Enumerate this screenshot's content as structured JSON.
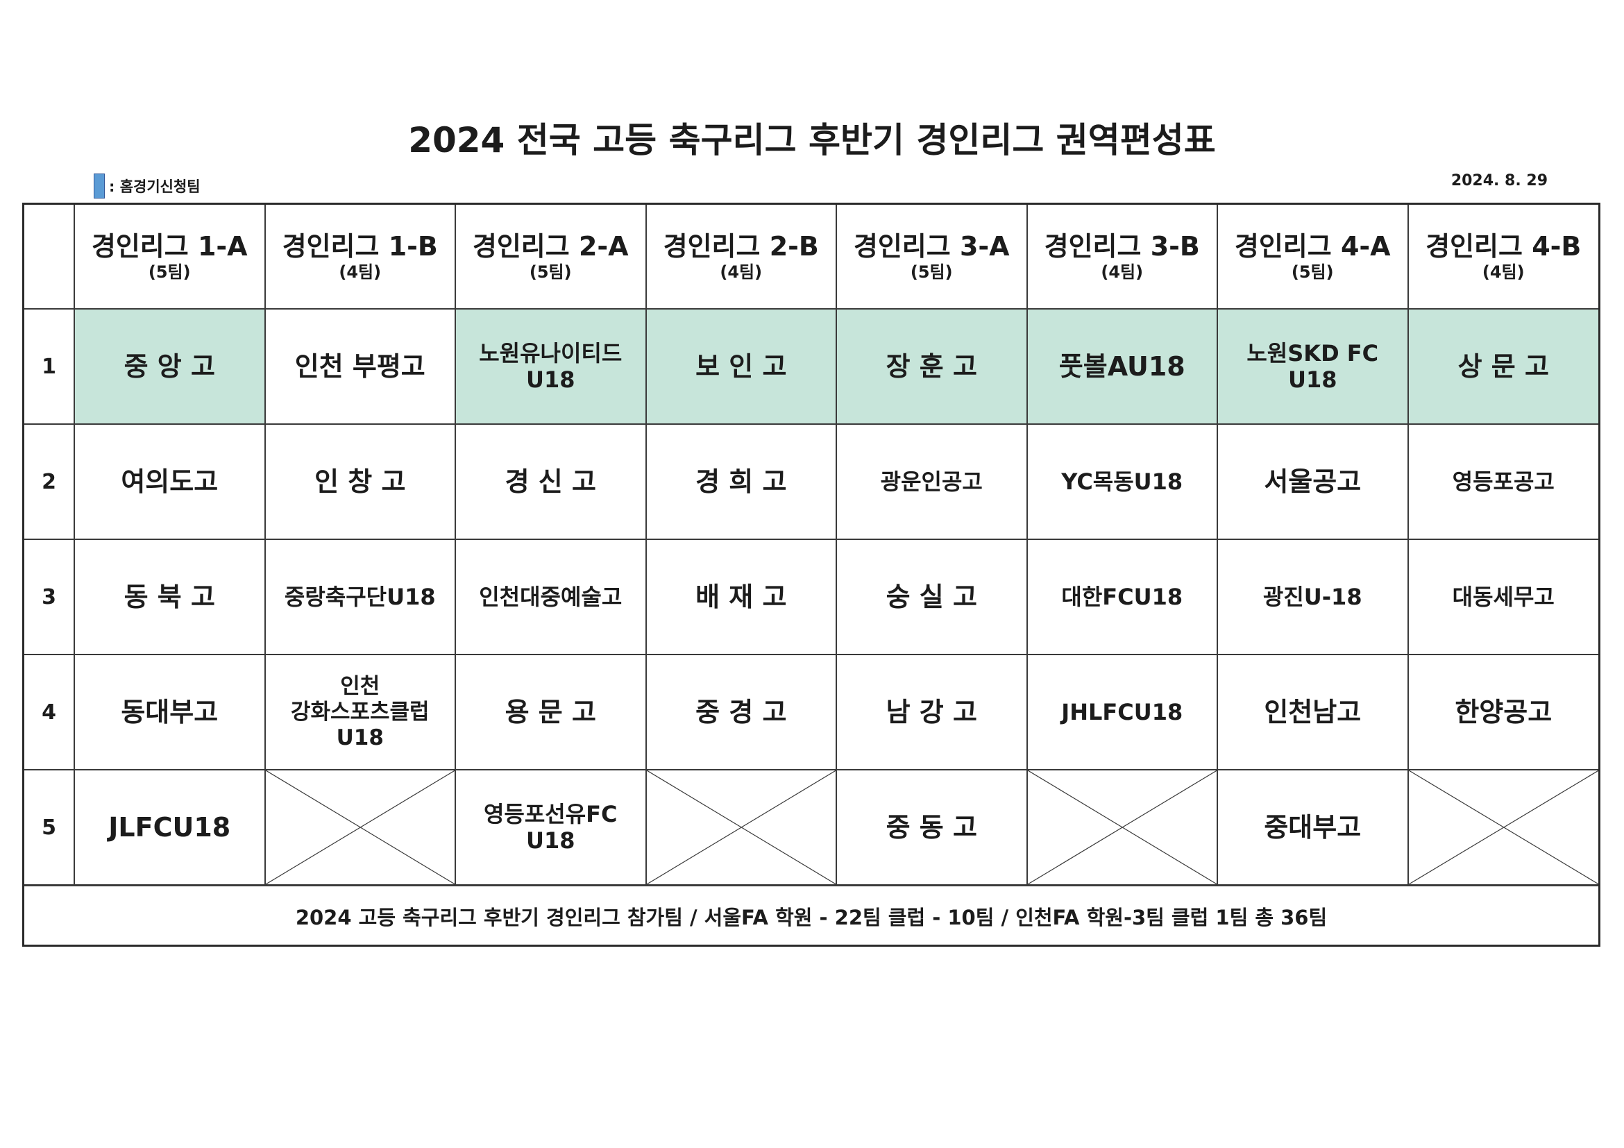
{
  "title": "2024 전국 고등 축구리그 후반기 경인리그 권역편성표",
  "legend": {
    "label": ": 홈경기신청팀",
    "swatch_color": "#5b9bd5"
  },
  "date": "2024. 8. 29",
  "home_color": "#c7e5da",
  "groups": [
    {
      "name": "경인리그 1-A",
      "count": "(5팀)"
    },
    {
      "name": "경인리그 1-B",
      "count": "(4팀)"
    },
    {
      "name": "경인리그 2-A",
      "count": "(5팀)"
    },
    {
      "name": "경인리그 2-B",
      "count": "(4팀)"
    },
    {
      "name": "경인리그 3-A",
      "count": "(5팀)"
    },
    {
      "name": "경인리그 3-B",
      "count": "(4팀)"
    },
    {
      "name": "경인리그 4-A",
      "count": "(5팀)"
    },
    {
      "name": "경인리그 4-B",
      "count": "(4팀)"
    }
  ],
  "rows": [
    {
      "num": "1",
      "teams": [
        "중 앙 고",
        "인천 부평고",
        "노원유나이티드\nU18",
        "보 인 고",
        "장 훈 고",
        "풋볼AU18",
        "노원SKD FC\nU18",
        "상 문 고"
      ]
    },
    {
      "num": "2",
      "teams": [
        "여의도고",
        "인 창 고",
        "경 신 고",
        "경 희 고",
        "광운인공고",
        "YC목동U18",
        "서울공고",
        "영등포공고"
      ]
    },
    {
      "num": "3",
      "teams": [
        "동 북 고",
        "중랑축구단U18",
        "인천대중예술고",
        "배 재 고",
        "숭 실 고",
        "대한FCU18",
        "광진U-18",
        "대동세무고"
      ]
    },
    {
      "num": "4",
      "teams": [
        "동대부고",
        "인천\n강화스포츠클럽\nU18",
        "용 문 고",
        "중 경 고",
        "남 강 고",
        "JHLFCU18",
        "인천남고",
        "한양공고"
      ]
    },
    {
      "num": "5",
      "teams": [
        "JLFCU18",
        "",
        "영등포선유FC\nU18",
        "",
        "중 동 고",
        "",
        "중대부고",
        ""
      ]
    }
  ],
  "home_teams_row": 1,
  "footer": "2024 고등 축구리그 후반기 경인리그 참가팀 / 서울FA 학원 - 22팀  클럽 - 10팀 / 인천FA 학원-3팀  클럽 1팀   총 36팀"
}
